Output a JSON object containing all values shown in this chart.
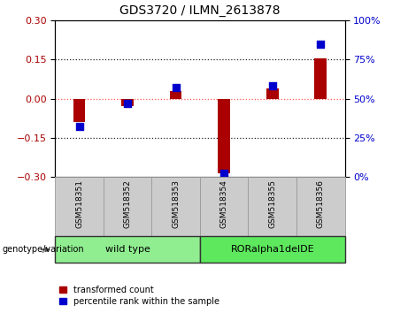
{
  "title": "GDS3720 / ILMN_2613878",
  "samples": [
    "GSM518351",
    "GSM518352",
    "GSM518353",
    "GSM518354",
    "GSM518355",
    "GSM518356"
  ],
  "transformed_counts": [
    -0.09,
    -0.03,
    0.03,
    -0.285,
    0.04,
    0.155
  ],
  "percentile_ranks": [
    32,
    47,
    57,
    2,
    58,
    85
  ],
  "ylim_left": [
    -0.3,
    0.3
  ],
  "ylim_right": [
    0,
    100
  ],
  "yticks_left": [
    -0.3,
    -0.15,
    0,
    0.15,
    0.3
  ],
  "yticks_right": [
    0,
    25,
    50,
    75,
    100
  ],
  "groups": [
    {
      "label": "wild type",
      "start": 0,
      "end": 3,
      "color": "#90EE90"
    },
    {
      "label": "RORalpha1delDE",
      "start": 3,
      "end": 6,
      "color": "#5DE85D"
    }
  ],
  "group_label": "genotype/variation",
  "bar_color_red": "#AA0000",
  "marker_color_blue": "#0000CC",
  "bg_plot": "#FFFFFF",
  "legend_red_label": "transformed count",
  "legend_blue_label": "percentile rank within the sample",
  "red_bar_width": 0.25,
  "hline_color": "#FF5555",
  "dotted_color": "#222222",
  "tick_bg": "#CCCCCC",
  "tick_border": "#999999"
}
